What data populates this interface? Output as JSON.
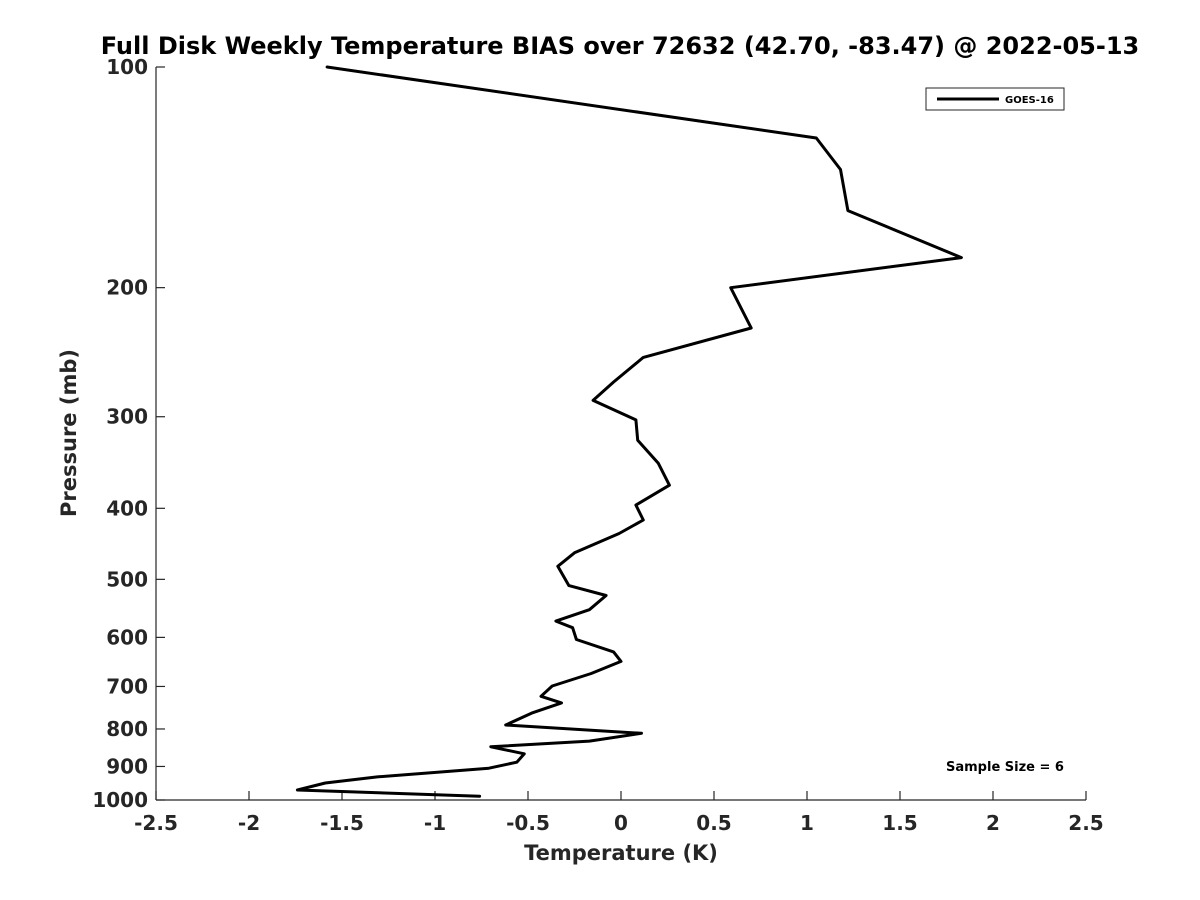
{
  "chart_data": {
    "type": "line",
    "title": "Full Disk Weekly Temperature BIAS over 72632 (42.70, -83.47) @ 2022-05-13",
    "xlabel": "Temperature (K)",
    "ylabel": "Pressure (mb)",
    "xlim": [
      -2.5,
      2.5
    ],
    "ylim": [
      100,
      1000
    ],
    "y_scale": "log",
    "y_reversed": true,
    "grid": false,
    "legend_position": "top-right",
    "x_ticks": [
      -2.5,
      -2,
      -1.5,
      -1,
      -0.5,
      0,
      0.5,
      1,
      1.5,
      2,
      2.5
    ],
    "x_tick_labels": [
      "-2.5",
      "-2",
      "-1.5",
      "-1",
      "-0.5",
      "0",
      "0.5",
      "1",
      "1.5",
      "2",
      "2.5"
    ],
    "y_ticks": [
      100,
      200,
      300,
      400,
      500,
      600,
      700,
      800,
      900,
      1000
    ],
    "y_tick_labels": [
      "100",
      "200",
      "300",
      "400",
      "500",
      "600",
      "700",
      "800",
      "900",
      "1000"
    ],
    "series": [
      {
        "name": "GOES-16",
        "color": "#000000",
        "x": [
          -1.58,
          1.05,
          1.18,
          1.22,
          1.83,
          0.59,
          0.7,
          0.12,
          -0.04,
          -0.15,
          0.08,
          0.09,
          0.2,
          0.26,
          0.08,
          0.12,
          -0.01,
          -0.25,
          -0.34,
          -0.28,
          -0.08,
          -0.17,
          -0.35,
          -0.26,
          -0.24,
          -0.04,
          0.0,
          -0.16,
          -0.37,
          -0.43,
          -0.32,
          -0.48,
          -0.62,
          0.11,
          -0.17,
          -0.7,
          -0.52,
          -0.56,
          -0.71,
          -1.31,
          -1.59,
          -1.74,
          -0.76
        ],
        "y": [
          100,
          125,
          138,
          157,
          182,
          200,
          227,
          249,
          269,
          285,
          303,
          323,
          347,
          372,
          396,
          415,
          433,
          460,
          480,
          510,
          526,
          550,
          570,
          582,
          604,
          628,
          647,
          672,
          699,
          722,
          737,
          761,
          790,
          811,
          831,
          846,
          865,
          888,
          905,
          930,
          948,
          969,
          988
        ]
      }
    ],
    "annotations": [
      "Sample Size = 6"
    ]
  }
}
